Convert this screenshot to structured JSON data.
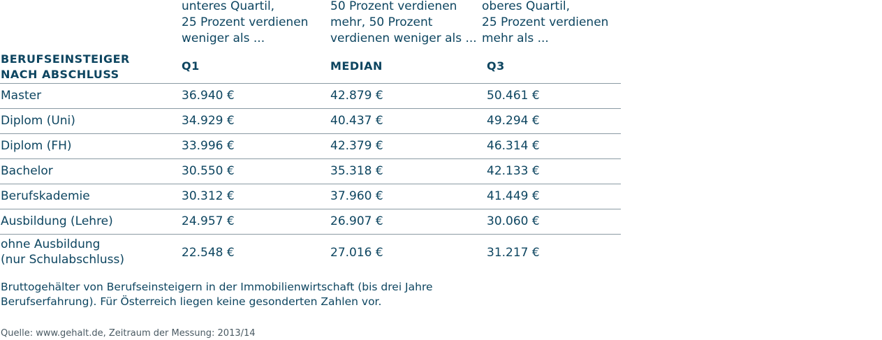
{
  "header": {
    "q1_desc": [
      "unteres Quartil,",
      "25 Prozent verdienen",
      "weniger als ..."
    ],
    "median_desc": [
      "50 Prozent verdienen",
      "mehr, 50 Prozent",
      "verdienen weniger als ..."
    ],
    "q3_desc": [
      "oberes Quartil,",
      "25 Prozent verdienen",
      "mehr als ..."
    ],
    "col_label": [
      "BERUFSEINSTEIGER",
      "NACH ABSCHLUSS"
    ],
    "col_q1": "Q1",
    "col_median": "MEDIAN",
    "col_q3": "Q3"
  },
  "rows": [
    {
      "label": "Master",
      "q1": "36.940 €",
      "median": "42.879 €",
      "q3": "50.461 €"
    },
    {
      "label": "Diplom (Uni)",
      "q1": "34.929 €",
      "median": "40.437 €",
      "q3": "49.294 €"
    },
    {
      "label": "Diplom (FH)",
      "q1": "33.996 €",
      "median": "42.379 €",
      "q3": "46.314 €"
    },
    {
      "label": "Bachelor",
      "q1": "30.550 €",
      "median": "35.318 €",
      "q3": "42.133 €"
    },
    {
      "label": "Berufskademie",
      "q1": "30.312 €",
      "median": "37.960 €",
      "q3": "41.449 €"
    },
    {
      "label": "Ausbildung (Lehre)",
      "q1": "24.957 €",
      "median": "26.907 €",
      "q3": "30.060 €"
    },
    {
      "label_lines": [
        "ohne Ausbildung",
        "(nur Schulabschluss)"
      ],
      "q1": "22.548 €",
      "median": "27.016 €",
      "q3": "31.217 €"
    }
  ],
  "note": [
    "Bruttogehälter von Berufseinsteigern in der Immobilienwirtschaft (bis drei Jahre",
    "Berufserfahrung). Für Österreich liegen keine gesonderten Zahlen vor."
  ],
  "source": "Quelle: www.gehalt.de, Zeitraum der Messung: 2013/14"
}
